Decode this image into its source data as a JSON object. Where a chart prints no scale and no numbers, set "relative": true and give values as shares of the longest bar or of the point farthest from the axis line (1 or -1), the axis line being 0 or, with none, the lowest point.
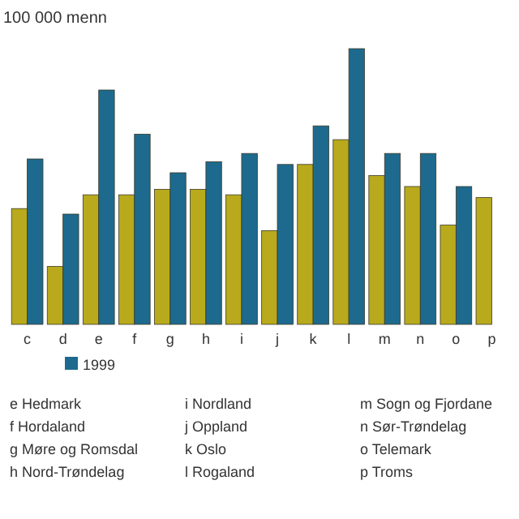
{
  "chart_data": {
    "type": "bar",
    "title": "100 000 menn",
    "relative": true,
    "legend": "bottom",
    "categories": [
      "c",
      "d",
      "e",
      "f",
      "g",
      "h",
      "i",
      "j",
      "k",
      "l",
      "m",
      "n",
      "o",
      "p"
    ],
    "series": [
      {
        "color": "#b8aa1c",
        "values": [
          0.42,
          0.21,
          0.47,
          0.47,
          0.49,
          0.49,
          0.47,
          0.34,
          0.58,
          0.67,
          0.54,
          0.5,
          0.36,
          0.46
        ]
      },
      {
        "name": "1999",
        "color": "#1d6a8e",
        "values": [
          0.6,
          0.4,
          0.85,
          0.69,
          0.55,
          0.59,
          0.62,
          0.58,
          0.72,
          1,
          0.62,
          0.62,
          0.5,
          null
        ]
      }
    ],
    "annotations": [
      "e Hedmark",
      "f Hordaland",
      "g Møre og Romsdal",
      "h Nord-Trøndelag",
      "i Nordland",
      "j Oppland",
      "k Oslo",
      "l Rogaland",
      "m Sogn og Fjordane",
      "n Sør-Trøndelag",
      "o Telemark",
      "p Troms"
    ]
  }
}
